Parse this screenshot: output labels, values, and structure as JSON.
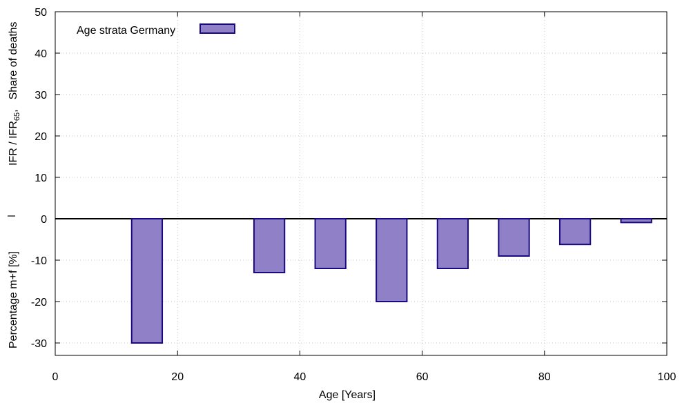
{
  "chart_data": {
    "type": "bar",
    "xlabel": "Age [Years]",
    "ylabel": {
      "upper_text": "IFR / IFR",
      "upper_subscript": "65",
      "upper_suffix": ",",
      "upper_second": "Share of deaths",
      "separator": "|",
      "lower_text": "Percentage m+f [%]"
    },
    "xlim": [
      0,
      100
    ],
    "ylim": [
      -33,
      50
    ],
    "xticks": [
      "0",
      "20",
      "40",
      "60",
      "80",
      "100"
    ],
    "xtick_values": [
      0,
      20,
      40,
      60,
      80,
      100
    ],
    "yticks": [
      "-30",
      "-20",
      "-10",
      "0",
      "10",
      "20",
      "30",
      "40",
      "50"
    ],
    "ytick_values": [
      -30,
      -20,
      -10,
      0,
      10,
      20,
      30,
      40,
      50
    ],
    "grid": true,
    "legend_position": "top-left",
    "series": [
      {
        "name": "Age strata Germany",
        "color": "#9080c8",
        "edge_color": "#1a0a80",
        "bars": [
          {
            "x_start": 12.5,
            "x_end": 17.5,
            "value": -30
          },
          {
            "x_start": 32.5,
            "x_end": 37.5,
            "value": -13
          },
          {
            "x_start": 42.5,
            "x_end": 47.5,
            "value": -12
          },
          {
            "x_start": 52.5,
            "x_end": 57.5,
            "value": -20
          },
          {
            "x_start": 62.5,
            "x_end": 67.5,
            "value": -12
          },
          {
            "x_start": 72.5,
            "x_end": 77.5,
            "value": -9
          },
          {
            "x_start": 82.5,
            "x_end": 87.5,
            "value": -6.2
          },
          {
            "x_start": 92.5,
            "x_end": 97.5,
            "value": -0.9
          }
        ]
      }
    ]
  }
}
